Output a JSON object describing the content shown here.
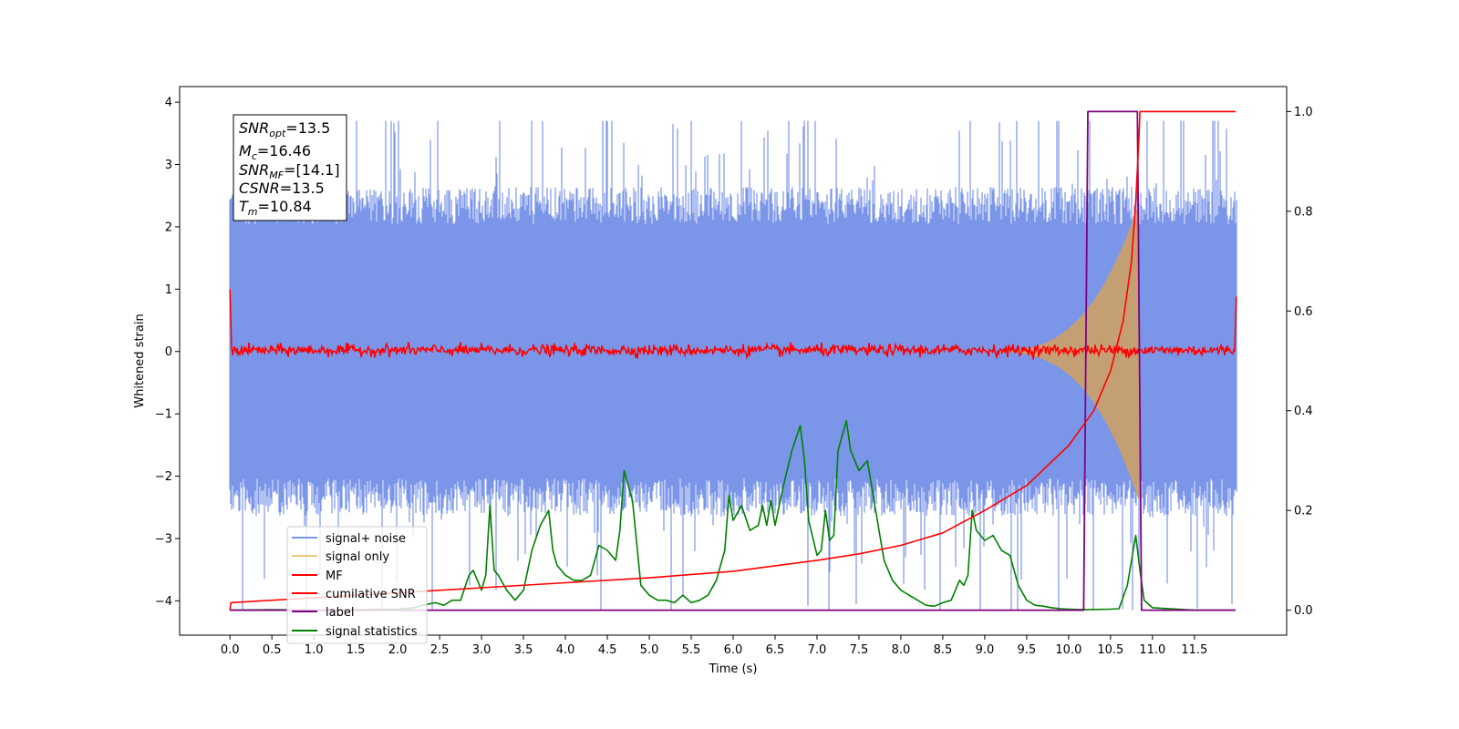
{
  "chart_data": {
    "type": "line",
    "xlabel": "Time (s)",
    "ylabel": "Whitened strain",
    "xlim": [
      -0.6,
      12.6
    ],
    "ylim": [
      -4.55,
      4.25
    ],
    "y2lim": [
      -0.05,
      1.05
    ],
    "xticks": [
      "0.0",
      "0.5",
      "1.0",
      "1.5",
      "2.0",
      "2.5",
      "3.0",
      "3.5",
      "4.0",
      "4.5",
      "5.0",
      "5.5",
      "6.0",
      "6.5",
      "7.0",
      "7.5",
      "8.0",
      "8.5",
      "9.0",
      "9.5",
      "10.0",
      "10.5",
      "11.0",
      "11.5"
    ],
    "yticks": [
      "−4",
      "−3",
      "−2",
      "−1",
      "0",
      "1",
      "2",
      "3",
      "4"
    ],
    "y2ticks": [
      "0.0",
      "0.2",
      "0.4",
      "0.6",
      "0.8",
      "1.0"
    ],
    "annotation": {
      "lines": [
        {
          "main": "SNR",
          "sub": "opt",
          "rest": "=13.5"
        },
        {
          "main": "M",
          "sub": "c",
          "rest": "=16.46"
        },
        {
          "main": "SNR",
          "sub": "MF",
          "rest": "=[14.1]"
        },
        {
          "main": "CSNR",
          "sub": "",
          "rest": "=13.5"
        },
        {
          "main": "T",
          "sub": "m",
          "rest": "=10.84"
        }
      ]
    },
    "legend": [
      {
        "label": "signal+ noise",
        "color": "#7b96e8"
      },
      {
        "label": "signal only",
        "color": "#f5c97a"
      },
      {
        "label": "MF",
        "color": "#ff0000"
      },
      {
        "label": "cumilative SNR",
        "color": "#ff0000"
      },
      {
        "label": "label",
        "color": "#800080"
      },
      {
        "label": "signal statistics",
        "color": "#008000"
      }
    ],
    "legend_position": "lower-left",
    "series": [
      {
        "name": "signal+ noise",
        "axis": "left",
        "color": "#7b96e8",
        "kind": "noise",
        "t_start": 0.0,
        "t_end": 12.0,
        "typical_range": [
          -2.4,
          2.4
        ],
        "extreme_range": [
          -4.15,
          3.7
        ]
      },
      {
        "name": "signal only",
        "axis": "left",
        "color": "#f5c97a",
        "kind": "chirp",
        "t_start": 9.0,
        "t_end": 10.84,
        "peak_amplitude": 2.4
      },
      {
        "name": "MF",
        "axis": "left",
        "color": "#ff0000",
        "kind": "noise",
        "t_start": 0.0,
        "t_end": 12.0,
        "typical_range": [
          -0.1,
          0.15
        ],
        "start_value": 1.0,
        "end_value": 0.88
      },
      {
        "name": "cumilative SNR",
        "axis": "right",
        "color": "#ff0000",
        "x": [
          0.0,
          0.01,
          1.0,
          2.0,
          3.0,
          4.0,
          5.0,
          6.0,
          7.0,
          7.5,
          8.0,
          8.5,
          9.0,
          9.5,
          10.0,
          10.3,
          10.5,
          10.65,
          10.75,
          10.8,
          10.84,
          10.85,
          11.99
        ],
        "values": [
          0.0,
          0.015,
          0.025,
          0.035,
          0.045,
          0.055,
          0.065,
          0.078,
          0.1,
          0.113,
          0.13,
          0.155,
          0.2,
          0.25,
          0.33,
          0.4,
          0.48,
          0.58,
          0.7,
          0.82,
          0.95,
          1.0,
          1.0
        ]
      },
      {
        "name": "label",
        "axis": "right",
        "color": "#800080",
        "x": [
          0.0,
          10.18,
          10.23,
          10.82,
          10.87,
          11.99
        ],
        "values": [
          0,
          0,
          1,
          1,
          0,
          0
        ]
      },
      {
        "name": "signal statistics",
        "axis": "right",
        "color": "#008000",
        "x": [
          0.0,
          0.5,
          1.0,
          1.5,
          2.0,
          2.2,
          2.3,
          2.45,
          2.55,
          2.65,
          2.75,
          2.85,
          2.9,
          3.0,
          3.05,
          3.1,
          3.15,
          3.2,
          3.3,
          3.4,
          3.5,
          3.6,
          3.7,
          3.8,
          3.85,
          3.9,
          4.0,
          4.1,
          4.2,
          4.3,
          4.4,
          4.5,
          4.6,
          4.65,
          4.7,
          4.8,
          4.9,
          5.0,
          5.1,
          5.2,
          5.3,
          5.4,
          5.5,
          5.6,
          5.7,
          5.8,
          5.9,
          5.95,
          6.0,
          6.1,
          6.2,
          6.3,
          6.35,
          6.4,
          6.45,
          6.5,
          6.6,
          6.7,
          6.8,
          6.85,
          6.9,
          7.0,
          7.05,
          7.1,
          7.15,
          7.2,
          7.25,
          7.3,
          7.35,
          7.4,
          7.5,
          7.6,
          7.7,
          7.8,
          7.9,
          8.0,
          8.1,
          8.2,
          8.3,
          8.4,
          8.5,
          8.6,
          8.7,
          8.75,
          8.8,
          8.85,
          8.9,
          9.0,
          9.1,
          9.2,
          9.3,
          9.4,
          9.5,
          9.6,
          9.7,
          9.8,
          9.9,
          10.0,
          10.2,
          10.5,
          10.6,
          10.7,
          10.75,
          10.8,
          10.85,
          10.9,
          11.0,
          11.5,
          11.99
        ],
        "values": [
          0.0,
          0.001,
          0.0,
          0.001,
          0.002,
          0.005,
          0.01,
          0.015,
          0.01,
          0.02,
          0.02,
          0.07,
          0.08,
          0.04,
          0.07,
          0.21,
          0.08,
          0.07,
          0.04,
          0.02,
          0.04,
          0.12,
          0.17,
          0.2,
          0.12,
          0.09,
          0.07,
          0.06,
          0.06,
          0.07,
          0.13,
          0.12,
          0.1,
          0.16,
          0.28,
          0.22,
          0.05,
          0.03,
          0.02,
          0.02,
          0.015,
          0.03,
          0.015,
          0.02,
          0.03,
          0.06,
          0.12,
          0.23,
          0.18,
          0.21,
          0.16,
          0.17,
          0.21,
          0.17,
          0.22,
          0.17,
          0.25,
          0.32,
          0.37,
          0.3,
          0.18,
          0.11,
          0.12,
          0.2,
          0.14,
          0.15,
          0.32,
          0.35,
          0.38,
          0.32,
          0.28,
          0.3,
          0.2,
          0.1,
          0.06,
          0.04,
          0.03,
          0.02,
          0.01,
          0.008,
          0.015,
          0.02,
          0.06,
          0.05,
          0.07,
          0.2,
          0.16,
          0.14,
          0.15,
          0.12,
          0.11,
          0.05,
          0.02,
          0.01,
          0.008,
          0.005,
          0.003,
          0.002,
          0.001,
          0.002,
          0.003,
          0.05,
          0.1,
          0.15,
          0.08,
          0.02,
          0.005,
          0.0,
          0.0
        ]
      }
    ]
  }
}
